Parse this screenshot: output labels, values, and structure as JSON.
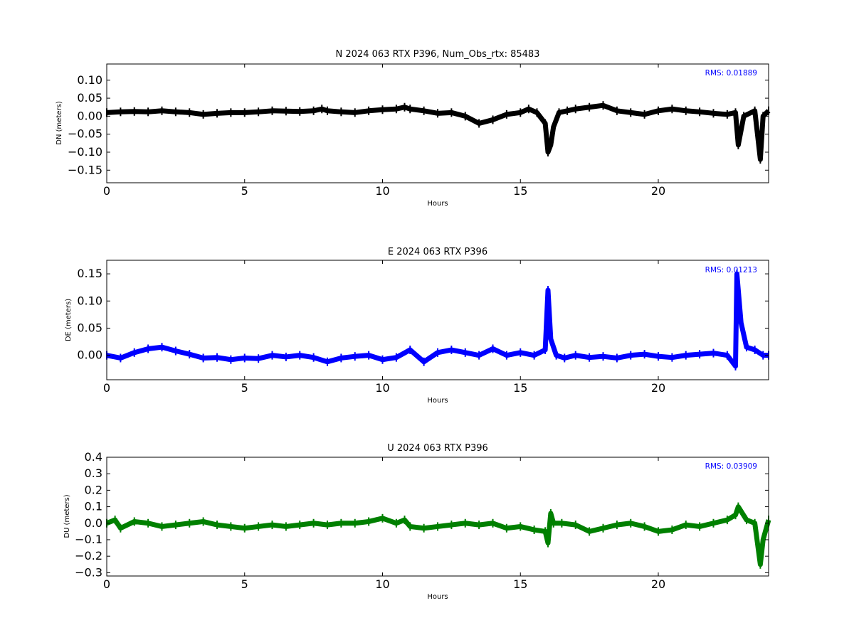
{
  "chart_data": [
    {
      "type": "scatter",
      "title": "N 2024 063 RTX  P396, Num_Obs_rtx: 85483",
      "xlabel": "Hours",
      "ylabel": "DN (meters)",
      "xlim": [
        0,
        24
      ],
      "ylim": [
        -0.185,
        0.145
      ],
      "xticks": [
        0,
        5,
        10,
        15,
        20
      ],
      "xtick_labels": [
        "0",
        "5",
        "10",
        "15",
        "20"
      ],
      "yticks": [
        0.1,
        0.05,
        0.0,
        -0.05,
        -0.1,
        -0.15
      ],
      "ytick_labels": [
        "0.10",
        "0.05",
        "0.00",
        "−0.05",
        "−0.10",
        "−0.15"
      ],
      "annotation": "RMS:  0.01889",
      "annotation_color": "#0000ff",
      "color": "#000000",
      "grid": false,
      "series": [
        {
          "x": [
            0,
            0.5,
            1,
            1.5,
            2,
            2.5,
            3,
            3.5,
            4,
            4.5,
            5,
            5.5,
            6,
            6.5,
            7,
            7.5,
            7.8,
            8,
            8.5,
            9,
            9.5,
            10,
            10.5,
            10.8,
            11,
            11.5,
            12,
            12.5,
            13,
            13.5,
            14,
            14.5,
            15,
            15.3,
            15.6,
            15.9,
            16.0,
            16.1,
            16.2,
            16.4,
            16.7,
            17,
            17.5,
            18,
            18.5,
            19,
            19.5,
            20,
            20.5,
            21,
            21.5,
            22,
            22.5,
            22.8,
            22.9,
            23.1,
            23.5,
            23.7,
            23.8,
            24
          ],
          "y": [
            0.01,
            0.012,
            0.013,
            0.012,
            0.015,
            0.012,
            0.01,
            0.005,
            0.008,
            0.01,
            0.01,
            0.012,
            0.015,
            0.014,
            0.013,
            0.015,
            0.02,
            0.015,
            0.012,
            0.01,
            0.015,
            0.018,
            0.02,
            0.025,
            0.02,
            0.015,
            0.008,
            0.01,
            0.0,
            -0.02,
            -0.01,
            0.005,
            0.01,
            0.02,
            0.01,
            -0.02,
            -0.1,
            -0.08,
            -0.03,
            0.01,
            0.015,
            0.02,
            0.025,
            0.03,
            0.015,
            0.01,
            0.005,
            0.015,
            0.02,
            0.015,
            0.012,
            0.008,
            0.005,
            0.01,
            -0.08,
            0.0,
            0.015,
            -0.12,
            0.0,
            0.015
          ]
        }
      ]
    },
    {
      "type": "scatter",
      "title": "E 2024 063 RTX  P396",
      "xlabel": "Hours",
      "ylabel": "DE (meters)",
      "xlim": [
        0,
        24
      ],
      "ylim": [
        -0.045,
        0.175
      ],
      "xticks": [
        0,
        5,
        10,
        15,
        20
      ],
      "xtick_labels": [
        "0",
        "5",
        "10",
        "15",
        "20"
      ],
      "yticks": [
        0.15,
        0.1,
        0.05,
        0.0
      ],
      "ytick_labels": [
        "0.15",
        "0.10",
        "0.05",
        "0.00"
      ],
      "annotation": "RMS:  0.01213",
      "annotation_color": "#0000ff",
      "color": "#0000ff",
      "grid": false,
      "series": [
        {
          "x": [
            0,
            0.5,
            1,
            1.5,
            2,
            2.5,
            3,
            3.5,
            4,
            4.5,
            5,
            5.5,
            6,
            6.5,
            7,
            7.5,
            8,
            8.5,
            9,
            9.5,
            10,
            10.5,
            11,
            11.5,
            12,
            12.5,
            13,
            13.5,
            14,
            14.5,
            15,
            15.5,
            15.9,
            16.0,
            16.1,
            16.3,
            16.6,
            17,
            17.5,
            18,
            18.5,
            19,
            19.5,
            20,
            20.5,
            21,
            21.5,
            22,
            22.5,
            22.8,
            22.85,
            23.0,
            23.2,
            23.5,
            23.8,
            24
          ],
          "y": [
            0.0,
            -0.005,
            0.005,
            0.012,
            0.015,
            0.008,
            0.002,
            -0.005,
            -0.004,
            -0.008,
            -0.005,
            -0.006,
            0.0,
            -0.003,
            0.0,
            -0.004,
            -0.012,
            -0.005,
            -0.002,
            0.0,
            -0.008,
            -0.004,
            0.01,
            -0.012,
            0.005,
            0.01,
            0.005,
            0.0,
            0.012,
            0.0,
            0.005,
            0.0,
            0.01,
            0.12,
            0.03,
            0.0,
            -0.005,
            0.0,
            -0.004,
            -0.002,
            -0.005,
            0.0,
            0.002,
            -0.002,
            -0.004,
            0.0,
            0.002,
            0.004,
            0.0,
            -0.02,
            0.15,
            0.06,
            0.015,
            0.01,
            0.0,
            0.0
          ]
        }
      ]
    },
    {
      "type": "scatter",
      "title": "U 2024 063 RTX  P396",
      "xlabel": "Hours",
      "ylabel": "DU (meters)",
      "xlim": [
        0,
        24
      ],
      "ylim": [
        -0.32,
        0.4
      ],
      "xticks": [
        0,
        5,
        10,
        15,
        20
      ],
      "xtick_labels": [
        "0",
        "5",
        "10",
        "15",
        "20"
      ],
      "yticks": [
        0.4,
        0.3,
        0.2,
        0.1,
        0.0,
        -0.1,
        -0.2,
        -0.3
      ],
      "ytick_labels": [
        "0.4",
        "0.3",
        "0.2",
        "0.1",
        "0.0",
        "−0.1",
        "−0.2",
        "−0.3"
      ],
      "annotation": "RMS:  0.03909",
      "annotation_color": "#0000ff",
      "color": "#008000",
      "grid": false,
      "series": [
        {
          "x": [
            0,
            0.3,
            0.5,
            1,
            1.5,
            2,
            2.5,
            3,
            3.5,
            4,
            4.5,
            5,
            5.5,
            6,
            6.5,
            7,
            7.5,
            8,
            8.5,
            9,
            9.5,
            10,
            10.5,
            10.8,
            11,
            11.5,
            12,
            12.5,
            13,
            13.5,
            14,
            14.5,
            15,
            15.5,
            15.9,
            16.0,
            16.1,
            16.2,
            16.5,
            17,
            17.5,
            18,
            18.5,
            19,
            19.5,
            20,
            20.5,
            21,
            21.5,
            22,
            22.5,
            22.8,
            22.9,
            23.2,
            23.5,
            23.7,
            23.8,
            24
          ],
          "y": [
            0.0,
            0.02,
            -0.03,
            0.01,
            0.0,
            -0.02,
            -0.01,
            0.0,
            0.01,
            -0.01,
            -0.02,
            -0.03,
            -0.02,
            -0.01,
            -0.02,
            -0.01,
            0.0,
            -0.01,
            0.0,
            0.0,
            0.01,
            0.03,
            0.0,
            0.02,
            -0.02,
            -0.03,
            -0.02,
            -0.01,
            0.0,
            -0.01,
            0.0,
            -0.03,
            -0.02,
            -0.04,
            -0.05,
            -0.12,
            0.06,
            0.0,
            0.0,
            -0.01,
            -0.05,
            -0.03,
            -0.01,
            0.0,
            -0.02,
            -0.05,
            -0.04,
            -0.01,
            -0.02,
            0.0,
            0.02,
            0.05,
            0.1,
            0.02,
            0.0,
            -0.25,
            -0.1,
            0.02
          ]
        }
      ]
    }
  ]
}
